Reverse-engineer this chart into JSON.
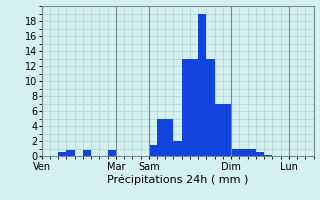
{
  "title": "",
  "xlabel": "Précipitations 24h ( mm )",
  "ylabel": "",
  "background_color": "#d4f0f0",
  "bar_color": "#1144dd",
  "grid_color": "#aacccc",
  "ylim": [
    0,
    20
  ],
  "yticks": [
    0,
    2,
    4,
    6,
    8,
    10,
    12,
    14,
    16,
    18
  ],
  "bar_values": [
    0,
    0,
    0.5,
    0.8,
    0,
    0.8,
    0,
    0,
    0.8,
    0,
    0,
    0,
    0,
    1.5,
    5,
    5,
    2,
    13,
    13,
    19,
    13,
    7,
    7,
    1,
    1,
    1,
    0.5,
    0.1,
    0,
    0,
    0,
    0,
    0
  ],
  "n_bars": 33,
  "day_labels": [
    "Ven",
    "Mar",
    "Sam",
    "Dim",
    "Lun"
  ],
  "day_positions": [
    0,
    9,
    13,
    23,
    30
  ],
  "vline_positions": [
    0,
    9,
    13,
    23,
    30
  ],
  "xlabel_fontsize": 8,
  "tick_fontsize": 7
}
